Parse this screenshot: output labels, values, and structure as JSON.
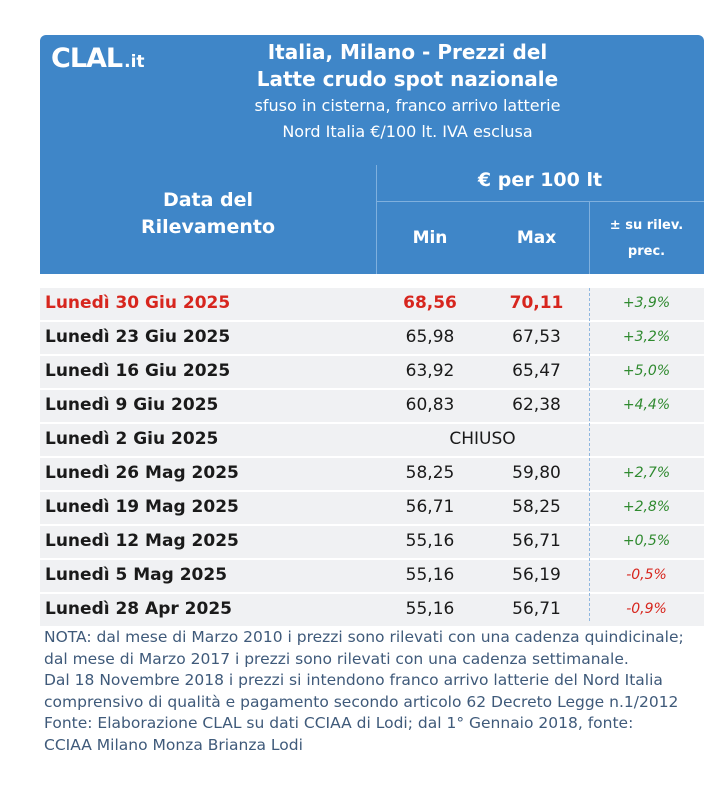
{
  "header": {
    "logo_main": "CLAL",
    "logo_suffix": ".it",
    "title_line1": "Italia, Milano - Prezzi del",
    "title_line2": "Latte crudo spot nazionale",
    "subtitle_line1": "sfuso in cisterna, franco arrivo latterie",
    "subtitle_line2": "Nord Italia €/100 lt. IVA esclusa",
    "col_date_line1": "Data del",
    "col_date_line2": "Rilevamento",
    "col_group": "€ per 100 lt",
    "col_min": "Min",
    "col_max": "Max",
    "col_var_line1": "± su rilev.",
    "col_var_line2": "prec."
  },
  "rows": [
    {
      "date": "Lunedì 30 Giu 2025",
      "min": "68,56",
      "max": "70,11",
      "var": "+3,9%"
    },
    {
      "date": "Lunedì 23 Giu 2025",
      "min": "65,98",
      "max": "67,53",
      "var": "+3,2%"
    },
    {
      "date": "Lunedì 16 Giu 2025",
      "min": "63,92",
      "max": "65,47",
      "var": "+5,0%"
    },
    {
      "date": "Lunedì 9 Giu 2025",
      "min": "60,83",
      "max": "62,38",
      "var": "+4,4%"
    },
    {
      "date": "Lunedì 2 Giu 2025",
      "closed": "CHIUSO"
    },
    {
      "date": "Lunedì 26 Mag 2025",
      "min": "58,25",
      "max": "59,80",
      "var": "+2,7%"
    },
    {
      "date": "Lunedì 19 Mag 2025",
      "min": "56,71",
      "max": "58,25",
      "var": "+2,8%"
    },
    {
      "date": "Lunedì 12 Mag 2025",
      "min": "55,16",
      "max": "56,71",
      "var": "+0,5%"
    },
    {
      "date": "Lunedì 5 Mag 2025",
      "min": "55,16",
      "max": "56,19",
      "var": "-0,5%"
    },
    {
      "date": "Lunedì 28 Apr 2025",
      "min": "55,16",
      "max": "56,71",
      "var": "-0,9%"
    }
  ],
  "notes": {
    "note1": "NOTA: dal mese di Marzo 2010 i prezzi sono rilevati con una cadenza quindicinale; dal mese di Marzo 2017 i prezzi sono rilevati con una cadenza settimanale.",
    "note2": "Dal 18 Novembre 2018 i prezzi si intendono franco arrivo latterie del Nord Italia comprensivo di qualità e pagamento secondo articolo 62 Decreto Legge n.1/2012",
    "note3": "Fonte: Elaborazione CLAL su dati CCIAA di Lodi; dal 1° Gennaio 2018, fonte: CCIAA Milano Monza Brianza Lodi"
  },
  "colors": {
    "header_bg": "#3f86c8",
    "row_bg": "#f0f1f3",
    "highlight_text": "#d7261e",
    "positive": "#2f8a2f",
    "negative": "#d7261e",
    "note_text": "#3f5a7a"
  }
}
